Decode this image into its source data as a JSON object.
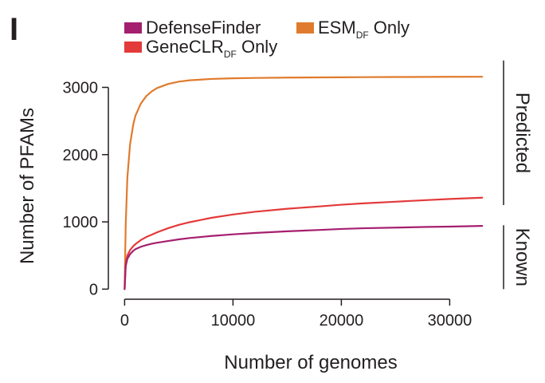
{
  "panel_label": "I",
  "colors": {
    "defensefinder": "#a51f6f",
    "esm_df_only": "#e07b2d",
    "geneclr_df_only": "#e33a3a",
    "axis": "#231f20"
  },
  "chart_data": {
    "type": "line",
    "xlabel": "Number of genomes",
    "ylabel": "Number of PFAMs",
    "xlim": [
      -1500,
      33500
    ],
    "ylim": [
      -150,
      3350
    ],
    "xticks": [
      0,
      10000,
      20000,
      30000
    ],
    "xtick_labels": [
      "0",
      "10000",
      "20000",
      "30000"
    ],
    "yticks": [
      0,
      1000,
      2000,
      3000
    ],
    "ytick_labels": [
      "0",
      "1000",
      "2000",
      "3000"
    ],
    "grid": false,
    "legend_position": "top",
    "legend": [
      {
        "key": "defensefinder",
        "label": "DefenseFinder",
        "label_sub": "",
        "label_tail": ""
      },
      {
        "key": "esm_df_only",
        "label": "ESM",
        "label_sub": "DF",
        "label_tail": " Only"
      },
      {
        "key": "geneclr_df_only",
        "label": "GeneCLR",
        "label_sub": "DF",
        "label_tail": " Only"
      }
    ],
    "brackets": [
      {
        "label": "Predicted",
        "y_range": [
          1250,
          3400
        ]
      },
      {
        "label": "Known",
        "y_range": [
          0,
          950
        ]
      }
    ],
    "x": [
      0,
      100,
      250,
      500,
      800,
      1000,
      1500,
      2000,
      2500,
      3000,
      4000,
      5000,
      6000,
      8000,
      10000,
      12000,
      15000,
      18000,
      20000,
      22000,
      25000,
      28000,
      30000,
      33000
    ],
    "series": [
      {
        "key": "esm_df_only",
        "values": [
          0,
          950,
          1650,
          2150,
          2450,
          2580,
          2760,
          2870,
          2940,
          2990,
          3050,
          3085,
          3105,
          3125,
          3135,
          3140,
          3145,
          3148,
          3150,
          3152,
          3154,
          3156,
          3157,
          3158
        ]
      },
      {
        "key": "geneclr_df_only",
        "values": [
          0,
          380,
          500,
          580,
          640,
          670,
          730,
          775,
          810,
          845,
          905,
          955,
          995,
          1060,
          1110,
          1150,
          1195,
          1230,
          1255,
          1275,
          1300,
          1325,
          1340,
          1360
        ]
      },
      {
        "key": "defensefinder",
        "values": [
          0,
          340,
          450,
          520,
          570,
          595,
          630,
          655,
          675,
          690,
          715,
          740,
          760,
          790,
          815,
          835,
          860,
          880,
          895,
          905,
          915,
          925,
          930,
          940
        ]
      }
    ]
  }
}
